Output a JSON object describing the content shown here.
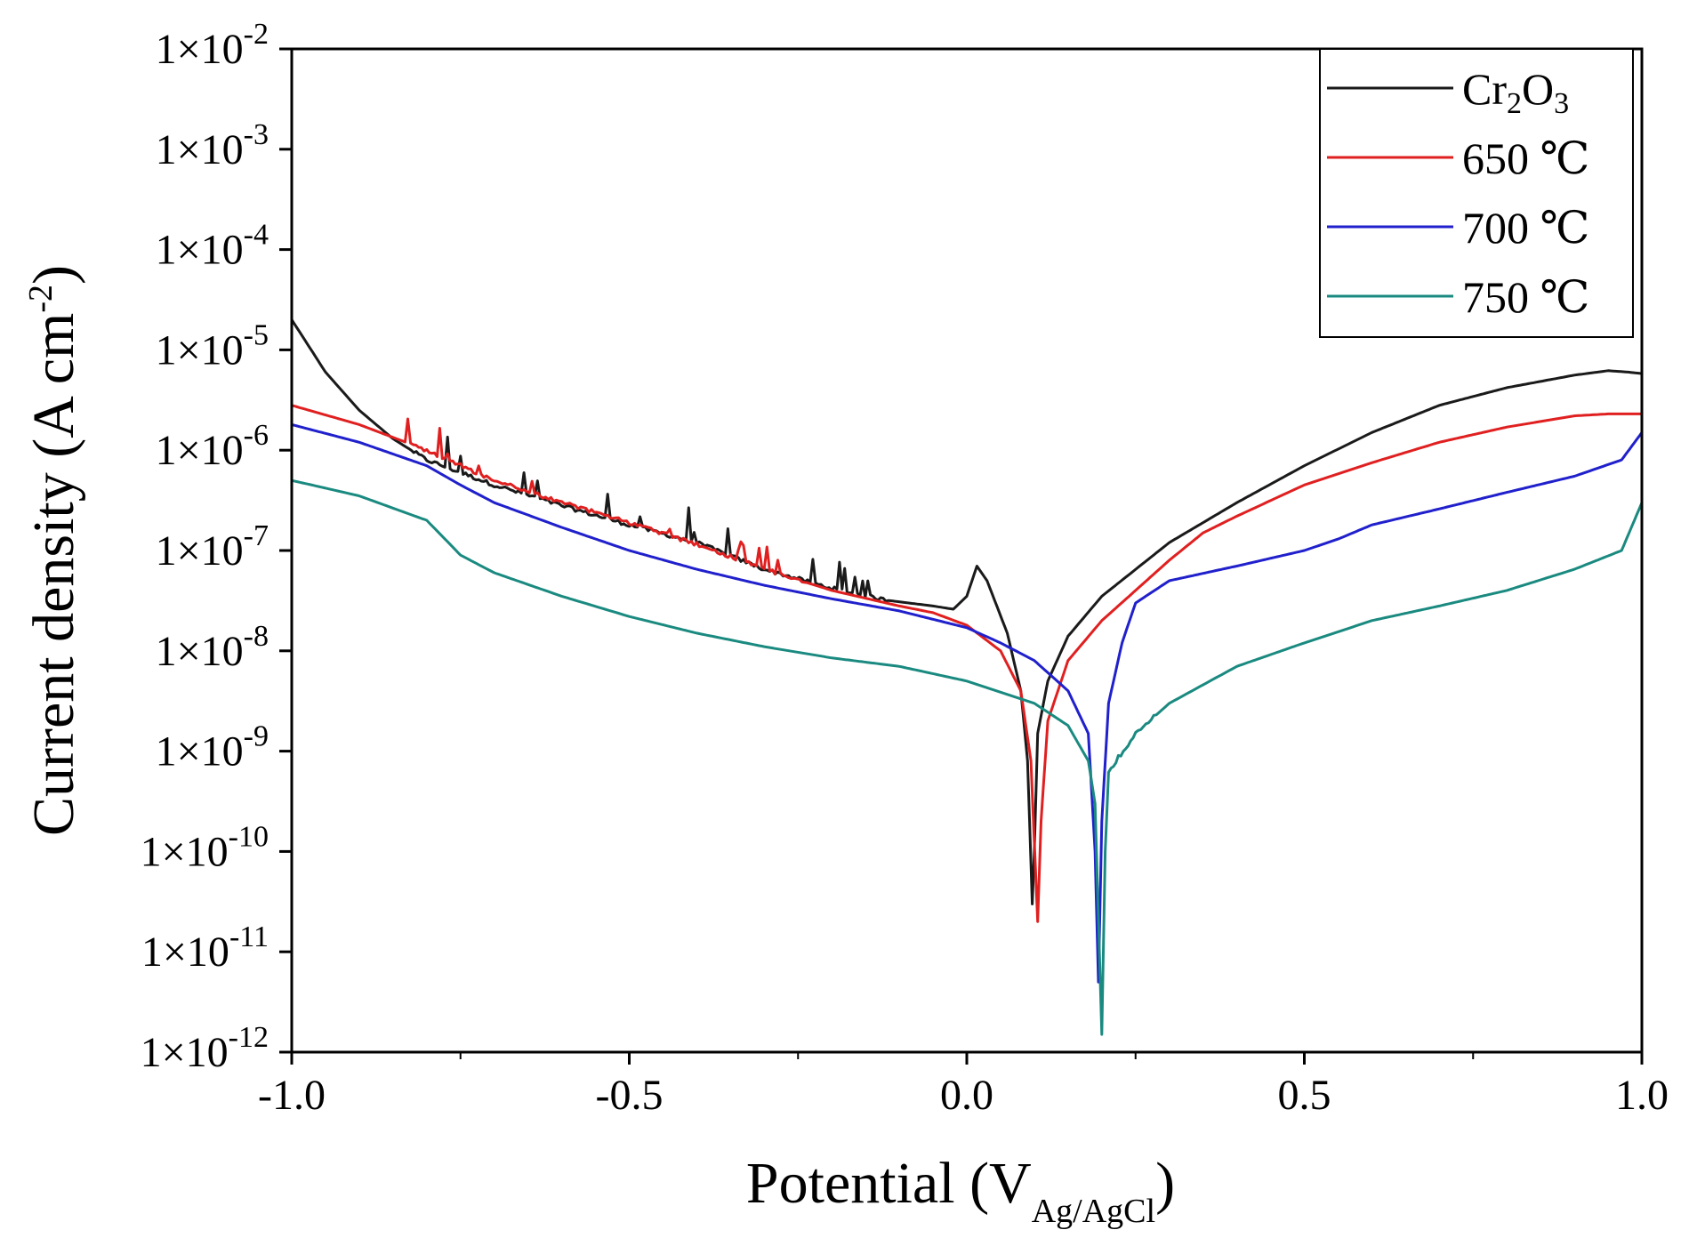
{
  "chart_data": {
    "type": "line",
    "x_scale": "linear",
    "y_scale": "log",
    "xlabel": {
      "main": "Potential (V",
      "sub": "Ag/AgCl",
      "close": ")"
    },
    "ylabel": {
      "main": "Current density (A cm",
      "sup": "-2",
      "close": ")"
    },
    "xlim": [
      -1.0,
      1.0
    ],
    "ylim": [
      1e-12,
      0.01
    ],
    "x_ticks": [
      -1.0,
      -0.5,
      0.0,
      0.5,
      1.0
    ],
    "x_tick_labels": [
      "-1.0",
      "-0.5",
      "0.0",
      "0.5",
      "1.0"
    ],
    "y_ticks": [
      {
        "value": 0.01,
        "base": "1×10",
        "exp": "-2"
      },
      {
        "value": 0.001,
        "base": "1×10",
        "exp": "-3"
      },
      {
        "value": 0.0001,
        "base": "1×10",
        "exp": "-4"
      },
      {
        "value": 1e-05,
        "base": "1×10",
        "exp": "-5"
      },
      {
        "value": 1e-06,
        "base": "1×10",
        "exp": "-6"
      },
      {
        "value": 1e-07,
        "base": "1×10",
        "exp": "-7"
      },
      {
        "value": 1e-08,
        "base": "1×10",
        "exp": "-8"
      },
      {
        "value": 1e-09,
        "base": "1×10",
        "exp": "-9"
      },
      {
        "value": 1e-10,
        "base": "1×10",
        "exp": "-10"
      },
      {
        "value": 1e-11,
        "base": "1×10",
        "exp": "-11"
      },
      {
        "value": 1e-12,
        "base": "1×10",
        "exp": "-12"
      }
    ],
    "legend_position": "top-right",
    "series": [
      {
        "name": "Cr2O3",
        "legend": {
          "parts": [
            "Cr",
            "2",
            "O",
            "3"
          ]
        },
        "color": "#1a1a1a",
        "noise": {
          "from": -0.82,
          "to": -0.12,
          "amp": 0.35
        },
        "points": [
          [
            -1.0,
            2e-05
          ],
          [
            -0.95,
            6e-06
          ],
          [
            -0.9,
            2.5e-06
          ],
          [
            -0.85,
            1.3e-06
          ],
          [
            -0.8,
            8e-07
          ],
          [
            -0.75,
            6e-07
          ],
          [
            -0.7,
            4.5e-07
          ],
          [
            -0.6,
            2.8e-07
          ],
          [
            -0.5,
            1.8e-07
          ],
          [
            -0.4,
            1.2e-07
          ],
          [
            -0.3,
            6.5e-08
          ],
          [
            -0.2,
            4.2e-08
          ],
          [
            -0.12,
            3.2e-08
          ],
          [
            -0.05,
            2.8e-08
          ],
          [
            -0.02,
            2.6e-08
          ],
          [
            0.0,
            3.5e-08
          ],
          [
            0.015,
            7e-08
          ],
          [
            0.03,
            5e-08
          ],
          [
            0.06,
            1.5e-08
          ],
          [
            0.08,
            4e-09
          ],
          [
            0.09,
            8e-10
          ],
          [
            0.097,
            3e-11
          ],
          [
            0.1,
            1e-10
          ],
          [
            0.105,
            1.5e-09
          ],
          [
            0.12,
            5e-09
          ],
          [
            0.15,
            1.4e-08
          ],
          [
            0.2,
            3.5e-08
          ],
          [
            0.3,
            1.2e-07
          ],
          [
            0.4,
            3e-07
          ],
          [
            0.5,
            7e-07
          ],
          [
            0.6,
            1.5e-06
          ],
          [
            0.7,
            2.8e-06
          ],
          [
            0.8,
            4.2e-06
          ],
          [
            0.9,
            5.6e-06
          ],
          [
            0.95,
            6.2e-06
          ],
          [
            0.98,
            6e-06
          ],
          [
            1.0,
            5.8e-06
          ]
        ]
      },
      {
        "name": "650 ℃",
        "legend": {
          "parts": [
            "650 ℃"
          ]
        },
        "color": "#e02020",
        "noise": {
          "from": -0.83,
          "to": -0.24,
          "amp": 0.3
        },
        "points": [
          [
            -1.0,
            2.8e-06
          ],
          [
            -0.9,
            1.8e-06
          ],
          [
            -0.8,
            1e-06
          ],
          [
            -0.7,
            5e-07
          ],
          [
            -0.6,
            3e-07
          ],
          [
            -0.5,
            1.9e-07
          ],
          [
            -0.4,
            1.15e-07
          ],
          [
            -0.3,
            6.5e-08
          ],
          [
            -0.2,
            4e-08
          ],
          [
            -0.1,
            2.8e-08
          ],
          [
            -0.05,
            2.4e-08
          ],
          [
            0.0,
            1.8e-08
          ],
          [
            0.05,
            1e-08
          ],
          [
            0.08,
            4e-09
          ],
          [
            0.095,
            8e-10
          ],
          [
            0.105,
            2e-11
          ],
          [
            0.11,
            2e-10
          ],
          [
            0.12,
            2e-09
          ],
          [
            0.15,
            8e-09
          ],
          [
            0.2,
            2e-08
          ],
          [
            0.3,
            8e-08
          ],
          [
            0.35,
            1.5e-07
          ],
          [
            0.4,
            2.2e-07
          ],
          [
            0.5,
            4.5e-07
          ],
          [
            0.6,
            7.5e-07
          ],
          [
            0.7,
            1.2e-06
          ],
          [
            0.8,
            1.7e-06
          ],
          [
            0.9,
            2.2e-06
          ],
          [
            0.95,
            2.3e-06
          ],
          [
            1.0,
            2.3e-06
          ]
        ]
      },
      {
        "name": "700 ℃",
        "legend": {
          "parts": [
            "700 ℃"
          ]
        },
        "color": "#2020cc",
        "noise": null,
        "points": [
          [
            -1.0,
            1.8e-06
          ],
          [
            -0.9,
            1.2e-06
          ],
          [
            -0.8,
            7e-07
          ],
          [
            -0.75,
            4.5e-07
          ],
          [
            -0.7,
            3e-07
          ],
          [
            -0.6,
            1.7e-07
          ],
          [
            -0.5,
            1e-07
          ],
          [
            -0.4,
            6.5e-08
          ],
          [
            -0.3,
            4.5e-08
          ],
          [
            -0.2,
            3.3e-08
          ],
          [
            -0.1,
            2.5e-08
          ],
          [
            0.0,
            1.7e-08
          ],
          [
            0.05,
            1.2e-08
          ],
          [
            0.1,
            8e-09
          ],
          [
            0.15,
            4e-09
          ],
          [
            0.18,
            1.5e-09
          ],
          [
            0.19,
            1e-10
          ],
          [
            0.195,
            5e-12
          ],
          [
            0.2,
            2e-10
          ],
          [
            0.21,
            3e-09
          ],
          [
            0.23,
            1.2e-08
          ],
          [
            0.25,
            3e-08
          ],
          [
            0.3,
            5e-08
          ],
          [
            0.4,
            7e-08
          ],
          [
            0.5,
            1e-07
          ],
          [
            0.55,
            1.3e-07
          ],
          [
            0.6,
            1.8e-07
          ],
          [
            0.7,
            2.6e-07
          ],
          [
            0.8,
            3.8e-07
          ],
          [
            0.9,
            5.5e-07
          ],
          [
            0.97,
            8e-07
          ],
          [
            1.0,
            1.5e-06
          ]
        ]
      },
      {
        "name": "750 ℃",
        "legend": {
          "parts": [
            "750 ℃"
          ]
        },
        "color": "#1a8a80",
        "noise": {
          "from": 0.21,
          "to": 0.28,
          "amp": 0.25
        },
        "points": [
          [
            -1.0,
            5e-07
          ],
          [
            -0.9,
            3.5e-07
          ],
          [
            -0.8,
            2e-07
          ],
          [
            -0.75,
            9e-08
          ],
          [
            -0.7,
            6e-08
          ],
          [
            -0.6,
            3.5e-08
          ],
          [
            -0.5,
            2.2e-08
          ],
          [
            -0.4,
            1.5e-08
          ],
          [
            -0.3,
            1.1e-08
          ],
          [
            -0.2,
            8.5e-09
          ],
          [
            -0.1,
            7e-09
          ],
          [
            0.0,
            5e-09
          ],
          [
            0.1,
            3e-09
          ],
          [
            0.15,
            1.8e-09
          ],
          [
            0.18,
            8e-10
          ],
          [
            0.19,
            3e-10
          ],
          [
            0.2,
            1.5e-12
          ],
          [
            0.205,
            1e-10
          ],
          [
            0.21,
            6e-10
          ],
          [
            0.25,
            1.5e-09
          ],
          [
            0.3,
            3e-09
          ],
          [
            0.4,
            7e-09
          ],
          [
            0.5,
            1.2e-08
          ],
          [
            0.6,
            2e-08
          ],
          [
            0.7,
            2.8e-08
          ],
          [
            0.8,
            4e-08
          ],
          [
            0.9,
            6.5e-08
          ],
          [
            0.97,
            1e-07
          ],
          [
            1.0,
            3e-07
          ]
        ]
      }
    ]
  }
}
